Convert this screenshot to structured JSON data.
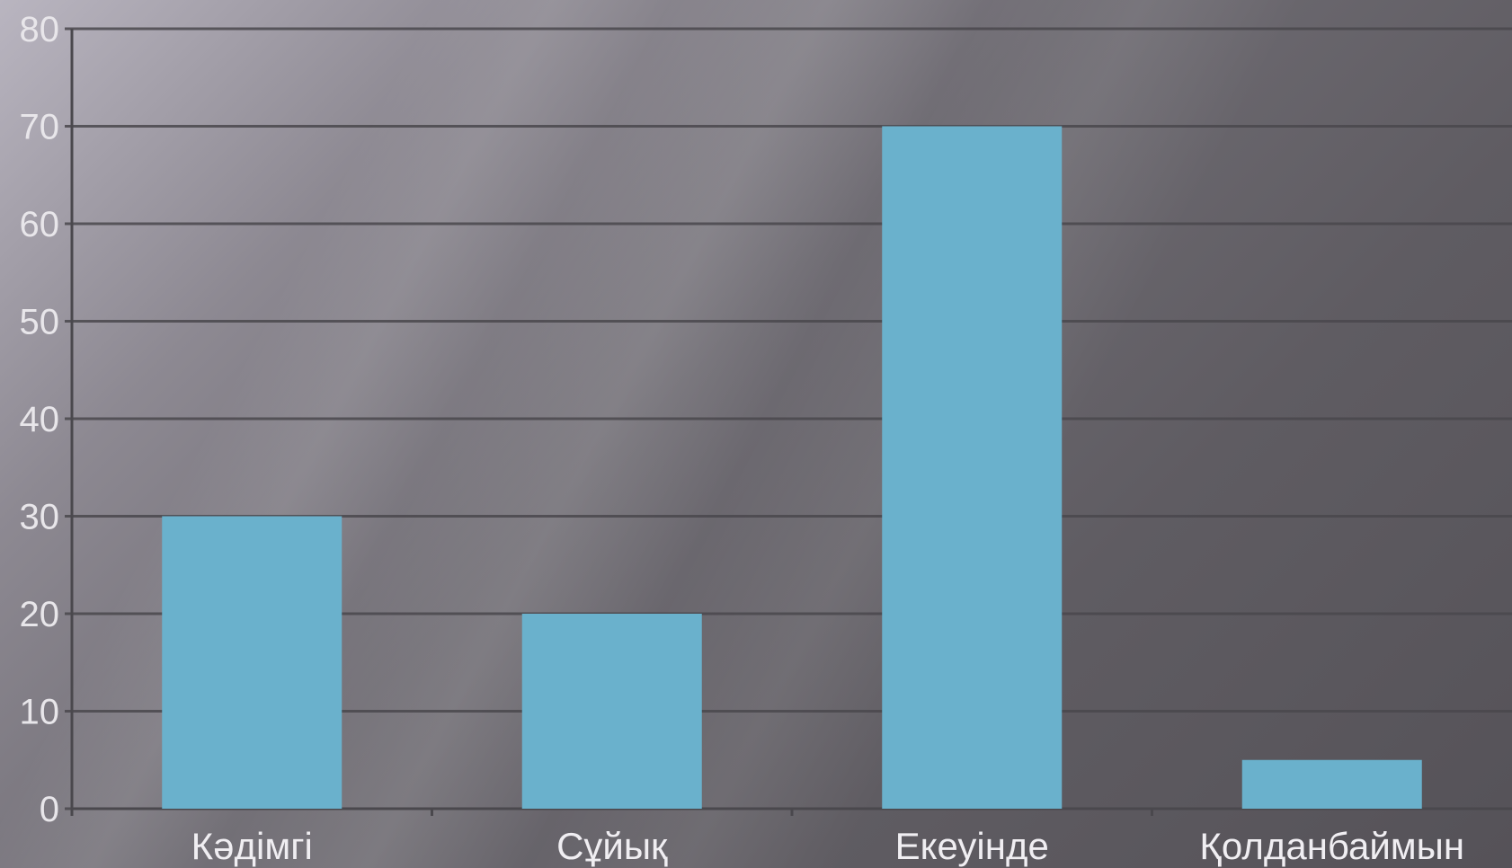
{
  "chart_data": {
    "type": "bar",
    "categories": [
      "Кәдімгі",
      "Сұйық",
      "Екеуінде",
      "Қолданбаймын"
    ],
    "values": [
      30,
      20,
      70,
      5
    ],
    "title": "",
    "xlabel": "",
    "ylabel": "",
    "ylim": [
      0,
      80
    ],
    "yticks": [
      "0",
      "10",
      "20",
      "30",
      "40",
      "50",
      "60",
      "70",
      "80"
    ],
    "grid": true,
    "legend": "none",
    "bar_color": "#6ab1cc",
    "gridline_color": "#4a484d",
    "background_color": "#6d6a71"
  }
}
